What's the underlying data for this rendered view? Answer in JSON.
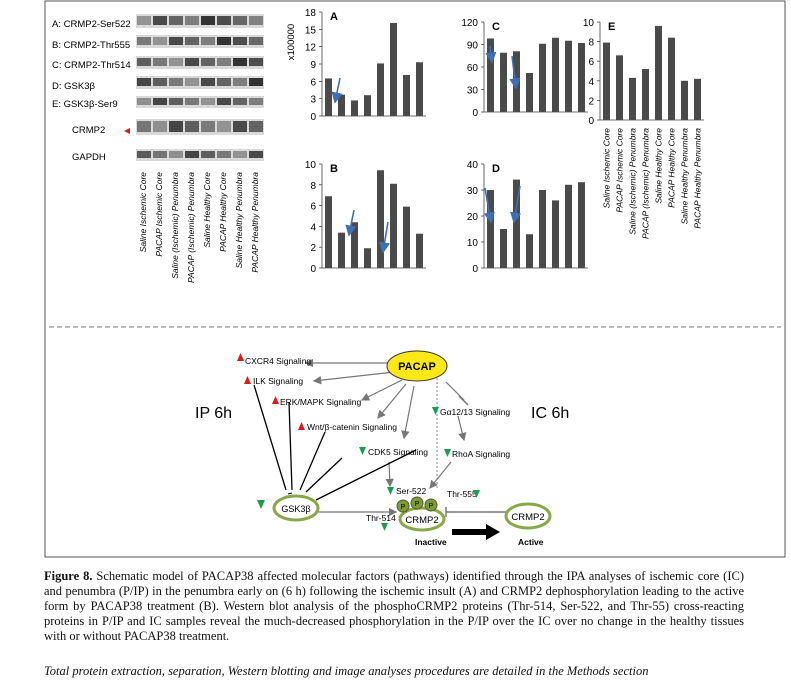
{
  "blot": {
    "bands": [
      "A: CRMP2-Ser522",
      "B: CRMP2-Thr555",
      "C: CRMP2-Thr514",
      "D: GSK3β",
      "E: GSK3β-Ser9",
      "CRMP2",
      "GAPDH"
    ],
    "lanes": [
      "Saline Ischemic Core",
      "PACAP Ischemic Core",
      "Saline (Ischemic) Penumbra",
      "PACAP (Ischemic) Penumbra",
      "Saline Healthy Core",
      "PACAP Healthy Core",
      "Saline Healthy Penumbra",
      "PACAP Healthy Penumbra"
    ]
  },
  "chart_data": [
    {
      "type": "bar",
      "title": "A",
      "ylabel": "x100000",
      "ylim": [
        0,
        18
      ],
      "yticks": [
        0,
        3,
        6,
        9,
        12,
        15,
        18
      ],
      "values": [
        6.5,
        3.7,
        2.7,
        3.6,
        9.1,
        16.1,
        7.1,
        9.3
      ]
    },
    {
      "type": "bar",
      "title": "B",
      "ylabel": "",
      "ylim": [
        0,
        10
      ],
      "yticks": [
        0,
        2,
        4,
        6,
        8,
        10
      ],
      "values": [
        6.9,
        3.4,
        4.4,
        1.9,
        9.4,
        8.1,
        5.9,
        3.3
      ]
    },
    {
      "type": "bar",
      "title": "C",
      "ylabel": "",
      "ylim": [
        0,
        120
      ],
      "yticks": [
        0,
        30,
        60,
        90,
        120
      ],
      "values": [
        98,
        79,
        81,
        52,
        91,
        99,
        95,
        92
      ]
    },
    {
      "type": "bar",
      "title": "D",
      "ylabel": "",
      "ylim": [
        0,
        40
      ],
      "yticks": [
        0,
        10,
        20,
        30,
        40
      ],
      "values": [
        30,
        15,
        34,
        13,
        30,
        26,
        32,
        33
      ]
    },
    {
      "type": "bar",
      "title": "E",
      "ylabel": "",
      "ylim": [
        0,
        10
      ],
      "yticks": [
        0,
        2,
        4,
        6,
        8,
        10
      ],
      "values": [
        7.9,
        6.6,
        4.3,
        5.2,
        9.6,
        8.4,
        4.0,
        4.2
      ]
    }
  ],
  "schematic": {
    "pacap": "PACAP",
    "ip_label": "IP 6h",
    "ic_label": "IC 6h",
    "cxcr4": "CXCR4 Signaling",
    "ilk": "ILK Signaling",
    "erk": "ERK/MAPK Signaling",
    "wnt": "Wnt/β-catenin Signaling",
    "cdk5": "CDK5 Signaling",
    "ga": "Gα12/13 Signaling",
    "rhoa": "RhoA Signaling",
    "gsk": "GSK3β",
    "ser522": "Ser-522",
    "thr555": "Thr-555",
    "thr514": "Thr-514",
    "p": "P",
    "crmp2_inactive": "CRMP2",
    "crmp2_active": "CRMP2",
    "inactive": "Inactive",
    "active": "Active"
  },
  "caption": {
    "bold": "Figure 8.",
    "text": " Schematic model of PACAP38 affected molecular factors (pathways) identified through the IPA analyses of ischemic core (IC) and penumbra (P/IP) in the penumbra early on (6 h) following the ischemic insult (A) and CRMP2 dephosphorylation leading to the active form by PACAP38 treatment (B). Western blot analysis of the phosphoCRMP2 proteins (Thr-514, Ser-522, and Thr-55) cross-reacting proteins in P/IP and IC samples reveal the much-decreased phosphorylation in the P/IP over the IC over no change in the healthy tissues with or without PACAP38 treatment."
  },
  "footnote": "Total protein extraction, separation, Western blotting and image analyses procedures are detailed in the Methods section",
  "colors": {
    "bar": "#4a4a4a",
    "arrow": "#3f6fb5",
    "red": "#d0201c",
    "green": "#1e9b4e",
    "pacap_fill": "#ffe818",
    "node_ring": "#8aa84a"
  }
}
